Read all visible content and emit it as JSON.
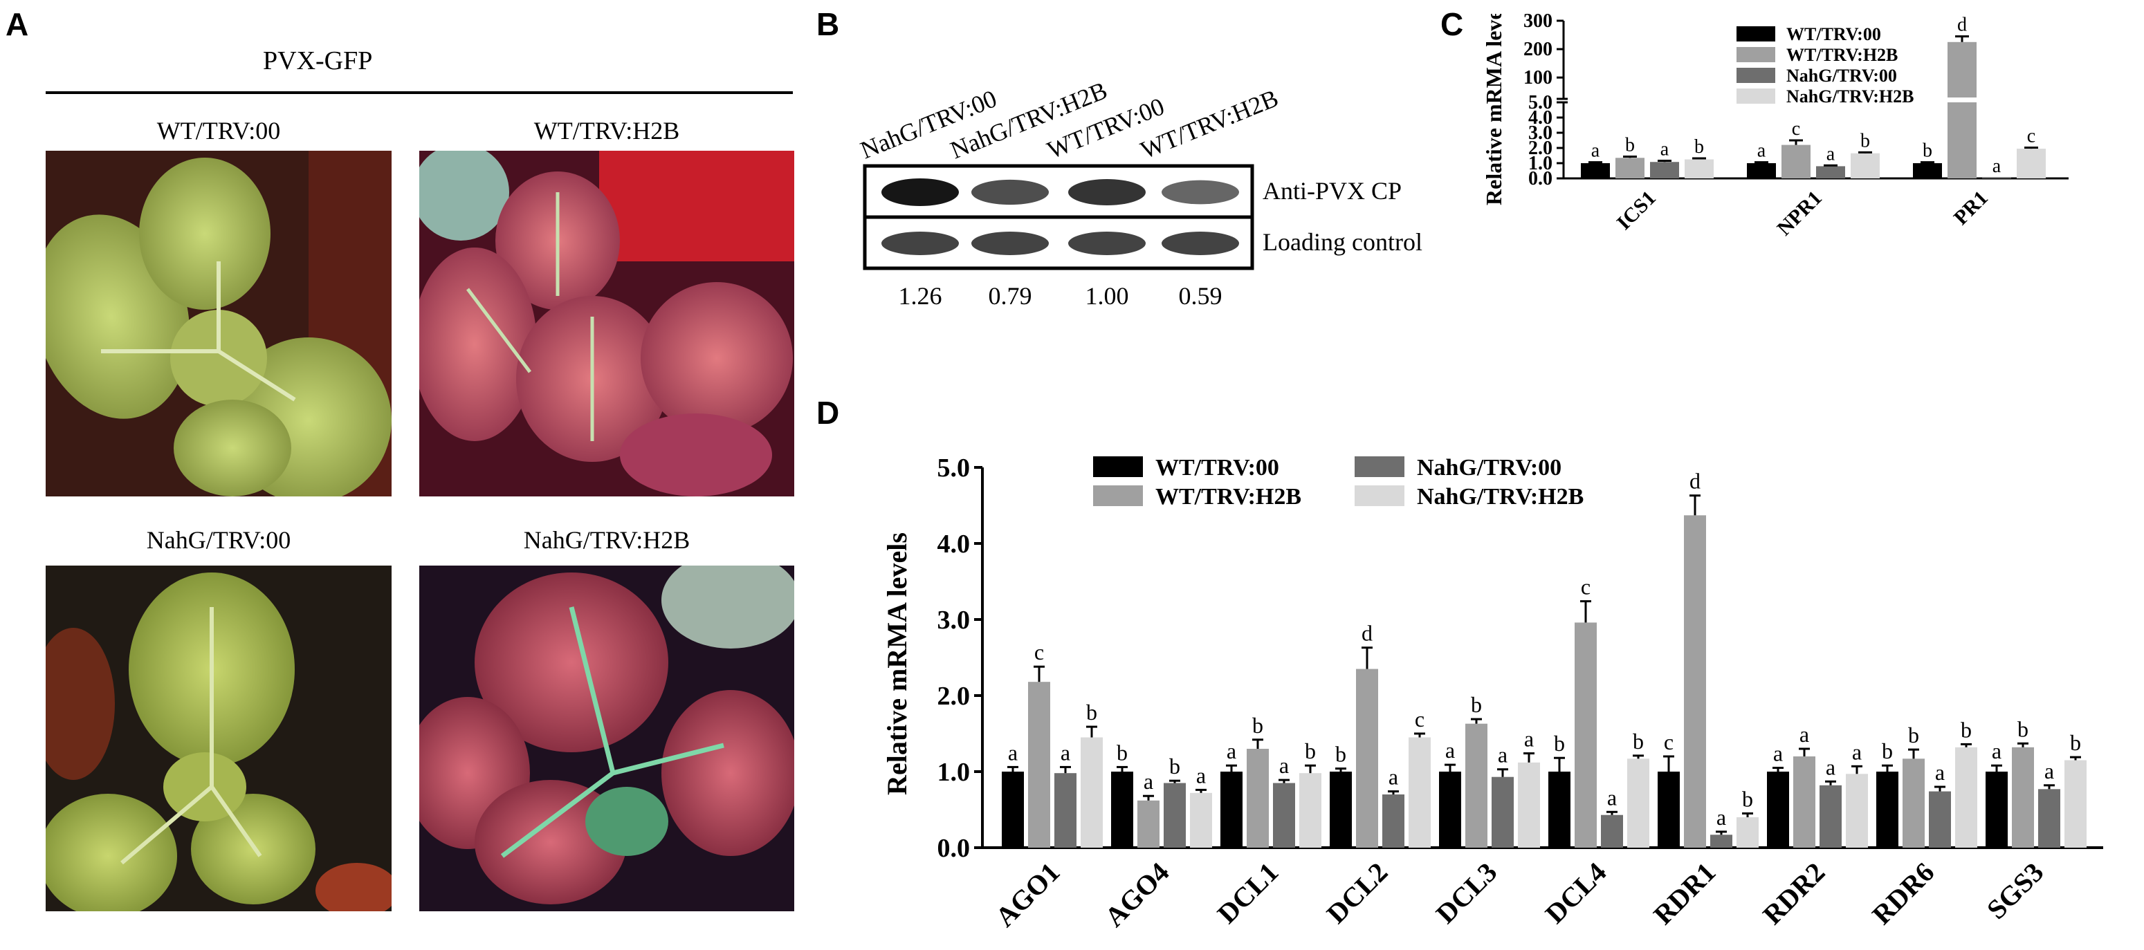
{
  "panelA": {
    "letter": "A",
    "header": "PVX-GFP",
    "photos": [
      {
        "label": "WT/TRV:00",
        "tone": "green"
      },
      {
        "label": "WT/TRV:H2B",
        "tone": "red"
      },
      {
        "label": "NahG/TRV:00",
        "tone": "green"
      },
      {
        "label": "NahG/TRV:H2B",
        "tone": "red"
      }
    ]
  },
  "panelB": {
    "letter": "B",
    "lanes": [
      "NahG/TRV:00",
      "NahG/TRV:H2B",
      "WT/TRV:00",
      "WT/TRV:H2B"
    ],
    "blot_labels": [
      "Anti-PVX CP",
      "Loading control"
    ],
    "quantification": [
      "1.26",
      "0.79",
      "1.00",
      "0.59"
    ],
    "band_intensity": [
      1.26,
      0.79,
      1.0,
      0.59
    ]
  },
  "colors": {
    "WT/TRV:00": "#000000",
    "WT/TRV:H2B": "#a0a0a0",
    "NahG/TRV:00": "#6e6e6e",
    "NahG/TRV:H2B": "#d9d9d9"
  },
  "chart_data": [
    {
      "id": "C",
      "letter": "C",
      "type": "bar",
      "ylabel": "Relative mRMA levels",
      "categories": [
        "ICS1",
        "NPR1",
        "PR1"
      ],
      "series": [
        {
          "name": "WT/TRV:00",
          "values": [
            1.0,
            1.0,
            1.0
          ],
          "errors": [
            0.06,
            0.06,
            0.06
          ],
          "letters": [
            "a",
            "a",
            "b"
          ]
        },
        {
          "name": "WT/TRV:H2B",
          "values": [
            1.35,
            2.2,
            225
          ],
          "errors": [
            0.08,
            0.3,
            20
          ],
          "letters": [
            "b",
            "c",
            "d"
          ]
        },
        {
          "name": "NahG/TRV:00",
          "values": [
            1.08,
            0.8,
            0.05
          ],
          "errors": [
            0.08,
            0.05,
            0.0
          ],
          "letters": [
            "a",
            "a",
            "a"
          ]
        },
        {
          "name": "NahG/TRV:H2B",
          "values": [
            1.25,
            1.65,
            1.95
          ],
          "errors": [
            0.07,
            0.06,
            0.07
          ],
          "letters": [
            "b",
            "b",
            "c"
          ]
        }
      ],
      "yaxis_broken": true,
      "lower_ylim": [
        0,
        5
      ],
      "lower_ticks": [
        "0.0",
        "1.0",
        "2.0",
        "3.0",
        "4.0",
        "5.0"
      ],
      "upper_ylim": [
        0,
        300
      ],
      "upper_ticks": [
        "100",
        "200",
        "300"
      ]
    },
    {
      "id": "D",
      "letter": "D",
      "type": "bar",
      "ylabel": "Relative mRMA levels",
      "categories": [
        "AGO1",
        "AGO4",
        "DCL1",
        "DCL2",
        "DCL3",
        "DCL4",
        "RDR1",
        "RDR2",
        "RDR6",
        "SGS3"
      ],
      "series": [
        {
          "name": "WT/TRV:00",
          "values": [
            1.0,
            1.0,
            1.0,
            1.0,
            1.0,
            1.0,
            1.0,
            1.0,
            1.0,
            1.0
          ],
          "errors": [
            0.06,
            0.06,
            0.08,
            0.04,
            0.09,
            0.18,
            0.2,
            0.05,
            0.08,
            0.08
          ],
          "letters": [
            "a",
            "b",
            "a",
            "b",
            "a",
            "b",
            "c",
            "a",
            "b",
            "a"
          ]
        },
        {
          "name": "WT/TRV:H2B",
          "values": [
            2.18,
            0.62,
            1.3,
            2.35,
            1.63,
            2.96,
            4.37,
            1.2,
            1.17,
            1.32
          ],
          "errors": [
            0.2,
            0.06,
            0.12,
            0.28,
            0.06,
            0.28,
            0.26,
            0.1,
            0.12,
            0.05
          ],
          "letters": [
            "c",
            "a",
            "b",
            "d",
            "b",
            "c",
            "d",
            "a",
            "b",
            "b"
          ]
        },
        {
          "name": "NahG/TRV:00",
          "values": [
            0.98,
            0.85,
            0.85,
            0.7,
            0.93,
            0.43,
            0.17,
            0.82,
            0.74,
            0.77
          ],
          "errors": [
            0.08,
            0.03,
            0.04,
            0.04,
            0.1,
            0.04,
            0.04,
            0.05,
            0.06,
            0.05
          ],
          "letters": [
            "a",
            "b",
            "a",
            "a",
            "a",
            "a",
            "a",
            "a",
            "a",
            "a"
          ]
        },
        {
          "name": "NahG/TRV:H2B",
          "values": [
            1.45,
            0.72,
            0.98,
            1.45,
            1.12,
            1.17,
            0.4,
            0.97,
            1.32,
            1.15
          ],
          "errors": [
            0.14,
            0.04,
            0.1,
            0.05,
            0.12,
            0.04,
            0.05,
            0.1,
            0.04,
            0.04
          ],
          "letters": [
            "b",
            "a",
            "b",
            "c",
            "a",
            "b",
            "b",
            "a",
            "b",
            "b"
          ]
        }
      ],
      "ylim": [
        0,
        5
      ],
      "yticks": [
        "0.0",
        "1.0",
        "2.0",
        "3.0",
        "4.0",
        "5.0"
      ]
    }
  ]
}
